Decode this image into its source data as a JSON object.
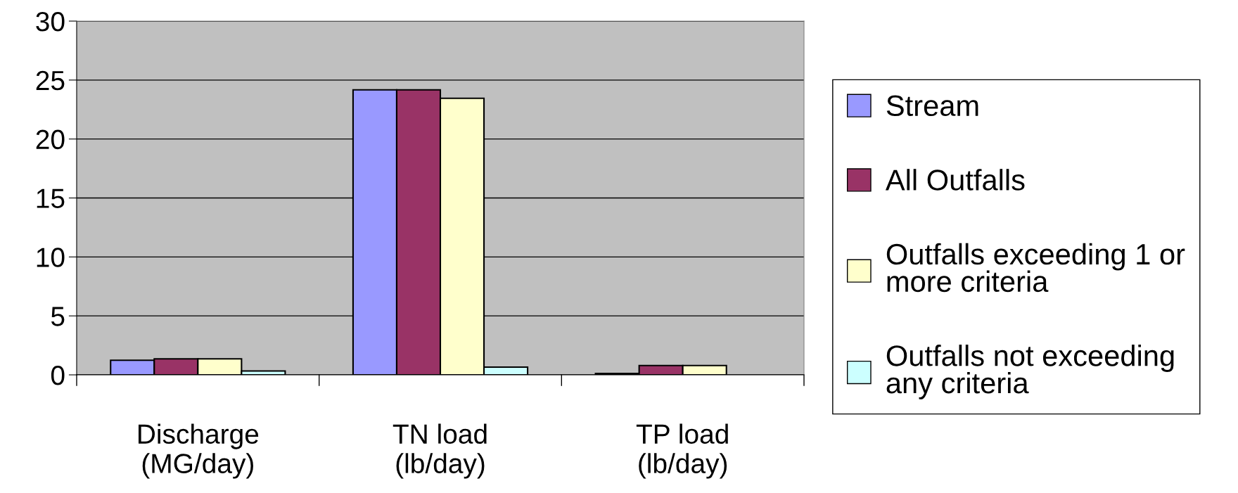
{
  "chart_data": {
    "type": "bar",
    "categories": [
      "Discharge\n(MG/day)",
      "TN load\n(lb/day)",
      "TP load\n(lb/day)"
    ],
    "series": [
      {
        "name": "Stream",
        "color": "#9999ff",
        "values": [
          1.24,
          24.17,
          0.12
        ]
      },
      {
        "name": "All Outfalls",
        "color": "#993366",
        "values": [
          1.36,
          24.17,
          0.79
        ]
      },
      {
        "name": "Outfalls exceeding 1 or more criteria",
        "color": "#ffffcc",
        "values": [
          1.36,
          23.45,
          0.79
        ]
      },
      {
        "name": "Outfalls not exceeding any criteria",
        "color": "#ccffff",
        "values": [
          0.33,
          0.66,
          null
        ]
      }
    ],
    "ylim": [
      0,
      30
    ],
    "yticks": [
      0,
      5,
      10,
      15,
      20,
      25,
      30
    ],
    "grid": "y",
    "legend": "right"
  }
}
